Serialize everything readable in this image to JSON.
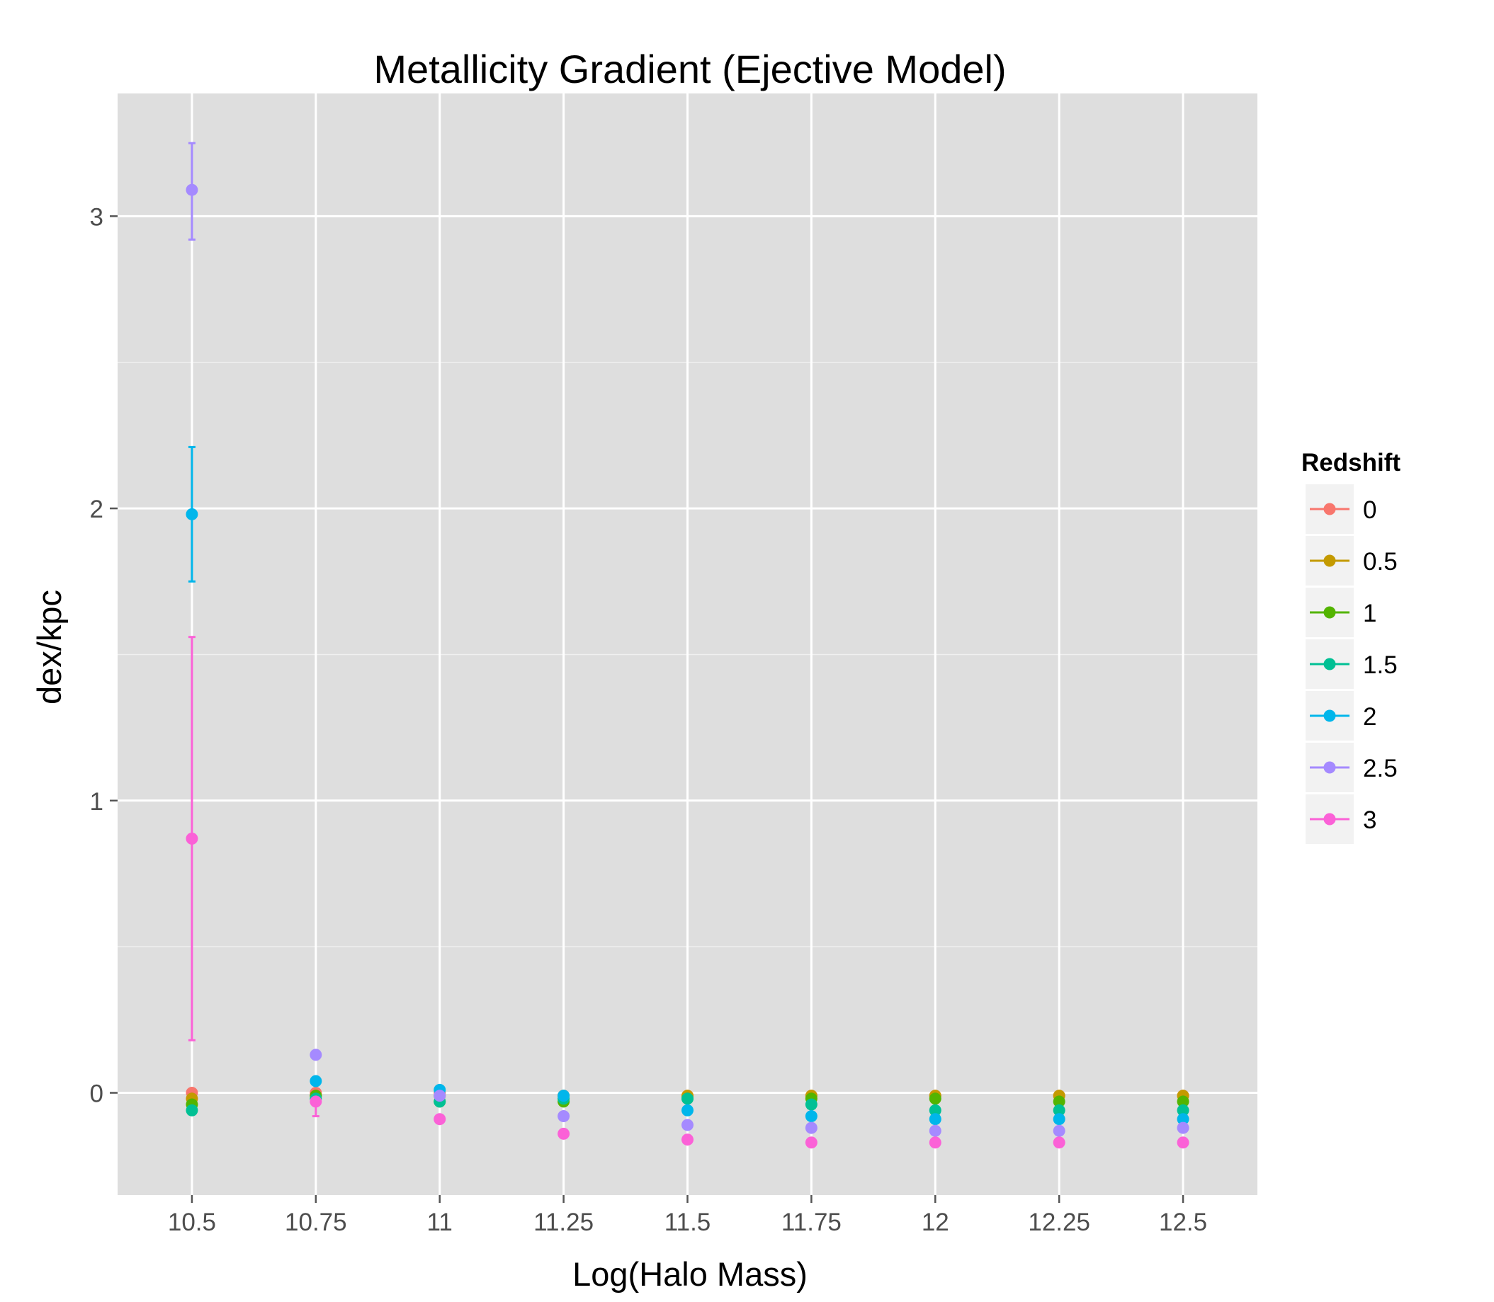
{
  "chart_data": {
    "type": "scatter",
    "title": "Metallicity Gradient (Ejective Model)",
    "xlabel": "Log(Halo Mass)",
    "ylabel": "dex/kpc",
    "x_ticks": [
      "10.5",
      "10.75",
      "11",
      "11.25",
      "11.5",
      "11.75",
      "12",
      "12.25",
      "12.5"
    ],
    "y_ticks": [
      "0",
      "1",
      "2",
      "3"
    ],
    "x": [
      10.5,
      10.75,
      11,
      11.25,
      11.5,
      11.75,
      12,
      12.25,
      12.5
    ],
    "xlim": [
      10.35,
      12.65
    ],
    "ylim": [
      -0.35,
      3.42
    ],
    "grid": true,
    "legend": {
      "title": "Redshift",
      "position": "right"
    },
    "series": [
      {
        "name": "0",
        "color": "#F8766D",
        "values": [
          0.0,
          0.0,
          0.0,
          -0.01,
          -0.01,
          -0.01,
          -0.01,
          -0.01,
          -0.01
        ]
      },
      {
        "name": "0.5",
        "color": "#C49A00",
        "values": [
          -0.02,
          -0.01,
          -0.01,
          -0.01,
          -0.01,
          -0.01,
          -0.01,
          -0.01,
          -0.01
        ]
      },
      {
        "name": "1",
        "color": "#53B400",
        "values": [
          -0.04,
          -0.01,
          -0.03,
          -0.03,
          -0.02,
          -0.02,
          -0.02,
          -0.03,
          -0.03
        ]
      },
      {
        "name": "1.5",
        "color": "#00C094",
        "values": [
          -0.06,
          -0.02,
          -0.03,
          -0.02,
          -0.02,
          -0.04,
          -0.06,
          -0.06,
          -0.06
        ]
      },
      {
        "name": "2",
        "color": "#00B6EB",
        "values": [
          1.98,
          0.04,
          0.01,
          -0.01,
          -0.06,
          -0.08,
          -0.09,
          -0.09,
          -0.09
        ]
      },
      {
        "name": "2.5",
        "color": "#A58AFF",
        "values": [
          3.09,
          0.13,
          -0.01,
          -0.08,
          -0.11,
          -0.12,
          -0.13,
          -0.13,
          -0.12
        ]
      },
      {
        "name": "3",
        "color": "#FB61D7",
        "values": [
          0.87,
          -0.03,
          -0.09,
          -0.14,
          -0.16,
          -0.17,
          -0.17,
          -0.17,
          -0.17
        ]
      }
    ],
    "error_bars": [
      {
        "series": "2.5",
        "x": 10.5,
        "low": 2.92,
        "high": 3.25
      },
      {
        "series": "2",
        "x": 10.5,
        "low": 1.75,
        "high": 2.21
      },
      {
        "series": "3",
        "x": 10.5,
        "low": 0.18,
        "high": 1.56
      },
      {
        "series": "3",
        "x": 10.75,
        "low": -0.08,
        "high": 0.0
      }
    ]
  }
}
